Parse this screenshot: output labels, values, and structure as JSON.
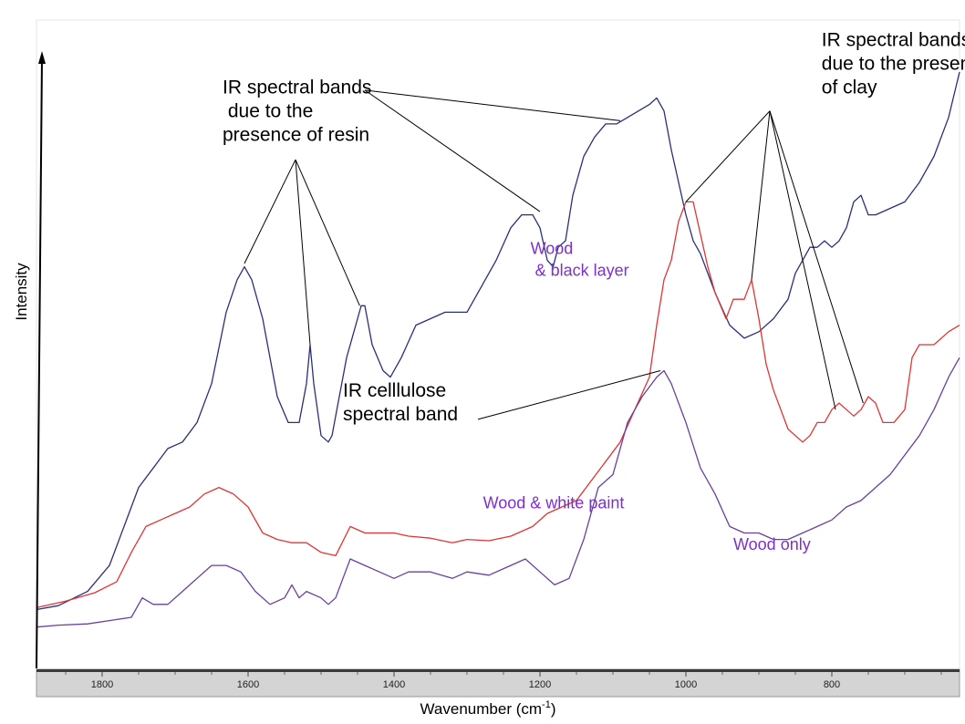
{
  "chart_data": {
    "type": "line",
    "title": "",
    "xlabel": "Wavenumber (cm",
    "xlabel_sup": "-1",
    "xlabel_end": ")",
    "ylabel": "Intensity",
    "x_reversed": true,
    "xlim": [
      1890,
      625
    ],
    "ylim": [
      0,
      100
    ],
    "x_ticks": [
      1800,
      1600,
      1400,
      1200,
      1000,
      800
    ],
    "x_tick_labels": [
      "1800",
      "1600",
      "1400",
      "1200",
      "1000",
      "800"
    ],
    "grid": false,
    "series": [
      {
        "name": "Wood & black layer",
        "color": "#2b2f7a",
        "x": [
          1890,
          1860,
          1820,
          1790,
          1770,
          1750,
          1730,
          1710,
          1690,
          1670,
          1650,
          1630,
          1615,
          1605,
          1595,
          1580,
          1560,
          1545,
          1530,
          1520,
          1515,
          1510,
          1500,
          1490,
          1485,
          1475,
          1465,
          1455,
          1445,
          1440,
          1430,
          1415,
          1405,
          1390,
          1370,
          1350,
          1330,
          1300,
          1280,
          1260,
          1240,
          1225,
          1210,
          1200,
          1190,
          1182,
          1175,
          1165,
          1155,
          1140,
          1125,
          1110,
          1095,
          1080,
          1065,
          1050,
          1040,
          1030,
          1020,
          1010,
          1000,
          990,
          980,
          960,
          940,
          920,
          900,
          880,
          860,
          850,
          840,
          830,
          820,
          810,
          800,
          790,
          780,
          770,
          760,
          750,
          740,
          720,
          700,
          680,
          660,
          640,
          625
        ],
        "y": [
          9.2,
          9.8,
          12,
          16,
          22,
          28,
          31,
          34,
          35,
          38,
          44,
          55,
          60,
          62,
          60,
          54,
          42,
          38,
          38,
          44,
          50,
          44,
          36,
          35,
          36,
          42,
          48,
          52,
          56,
          56,
          50,
          46,
          45,
          48,
          53,
          54,
          55,
          55,
          59,
          63,
          68,
          70,
          70,
          68,
          63,
          62,
          65,
          66,
          73,
          79,
          82,
          84,
          84,
          85,
          86,
          87,
          88,
          86,
          80,
          75,
          70,
          66,
          64,
          58,
          53,
          51,
          52,
          54,
          57,
          61,
          63,
          65,
          65,
          66,
          65,
          66,
          68,
          72,
          73,
          70,
          70,
          71,
          72,
          75,
          79,
          85,
          92
        ]
      },
      {
        "name": "Wood & white paint",
        "color": "#e03535",
        "x": [
          1890,
          1850,
          1810,
          1780,
          1760,
          1740,
          1720,
          1700,
          1680,
          1660,
          1640,
          1620,
          1600,
          1580,
          1560,
          1540,
          1520,
          1500,
          1480,
          1460,
          1440,
          1420,
          1400,
          1380,
          1350,
          1320,
          1300,
          1270,
          1240,
          1210,
          1190,
          1170,
          1150,
          1130,
          1110,
          1090,
          1070,
          1050,
          1040,
          1030,
          1020,
          1010,
          1000,
          990,
          980,
          970,
          960,
          945,
          935,
          920,
          910,
          900,
          890,
          880,
          860,
          840,
          830,
          820,
          810,
          800,
          790,
          780,
          770,
          760,
          750,
          740,
          730,
          715,
          700,
          690,
          680,
          660,
          640,
          625
        ],
        "y": [
          9.5,
          10.5,
          11.8,
          13.5,
          18,
          22,
          23,
          24,
          25,
          27,
          28,
          27,
          25,
          21,
          20,
          19.5,
          19.5,
          18,
          17.5,
          22,
          21,
          21,
          21,
          20.5,
          20.2,
          19.5,
          20,
          19.8,
          20.5,
          22,
          24,
          25,
          26,
          29,
          32,
          35,
          40,
          45,
          53,
          60,
          63,
          69,
          72,
          72,
          67,
          62,
          58,
          54,
          57,
          57,
          60,
          54,
          47,
          43,
          37,
          35,
          36,
          38,
          38,
          40,
          41,
          40,
          39,
          40,
          42,
          41,
          38,
          38,
          40,
          48,
          50,
          50,
          52,
          53
        ]
      },
      {
        "name": "Wood only",
        "color": "#6a3fa0",
        "x": [
          1890,
          1860,
          1820,
          1790,
          1760,
          1745,
          1730,
          1710,
          1690,
          1670,
          1650,
          1630,
          1610,
          1590,
          1570,
          1550,
          1540,
          1530,
          1520,
          1500,
          1490,
          1480,
          1470,
          1460,
          1440,
          1420,
          1400,
          1380,
          1350,
          1320,
          1300,
          1270,
          1240,
          1220,
          1200,
          1180,
          1160,
          1140,
          1120,
          1100,
          1080,
          1060,
          1040,
          1030,
          1020,
          1000,
          980,
          960,
          940,
          920,
          900,
          880,
          860,
          840,
          820,
          800,
          780,
          760,
          740,
          720,
          700,
          680,
          660,
          640,
          625
        ],
        "y": [
          6.5,
          6.8,
          7,
          7.5,
          8,
          11,
          10,
          10,
          12,
          14,
          16,
          16,
          15,
          12,
          10,
          11,
          13,
          11,
          12,
          11,
          10,
          11,
          14,
          17,
          16,
          15,
          14,
          15,
          15,
          14,
          15,
          14.5,
          16,
          17,
          15,
          13,
          14,
          20,
          28,
          30,
          38,
          42,
          45,
          46,
          44,
          38,
          31,
          27,
          22,
          21,
          21,
          20,
          20,
          21,
          22,
          23,
          25,
          26,
          28,
          30,
          33,
          36,
          40,
          45,
          48
        ]
      }
    ],
    "series_labels": [
      {
        "text_line1": "Wood",
        "text_line2": "& black layer",
        "x": 1213,
        "y": 64,
        "color": "#7e2fd0"
      },
      {
        "text_line1": "Wood & white paint",
        "text_line2": "",
        "x": 1278,
        "y": 24.8,
        "color": "#7e2fd0"
      },
      {
        "text_line1": "Wood only",
        "text_line2": "",
        "x": 935,
        "y": 18.4,
        "color": "#7e2fd0"
      }
    ],
    "annotations": [
      {
        "lines": [
          "IR spectral bands",
          " due to the",
          "presence of resin"
        ],
        "text_x": 1635,
        "text_y": 88.7,
        "targets": [
          [
            1605,
            62.5
          ],
          [
            1515,
            50
          ],
          [
            1447,
            56
          ]
        ],
        "source": [
          1535,
          78.5
        ]
      },
      {
        "lines": [],
        "text_x": null,
        "text_y": null,
        "targets": [
          [
            1200,
            70.5
          ],
          [
            1090,
            84.5
          ]
        ],
        "source": [
          1440,
          89.2
        ]
      },
      {
        "lines": [
          "IR spectral bands",
          "due to the presence",
          "of clay"
        ],
        "text_x": 814,
        "text_y": 96,
        "targets": [
          [
            1000,
            72
          ],
          [
            910,
            60
          ],
          [
            795,
            40
          ],
          [
            757,
            41
          ]
        ],
        "source": [
          885,
          86
        ]
      },
      {
        "lines": [
          "IR celllulose",
          "spectral band"
        ],
        "text_x": 1470,
        "text_y": 42,
        "targets": [
          [
            1035,
            46
          ]
        ],
        "source": [
          1285,
          38.5
        ]
      }
    ]
  }
}
